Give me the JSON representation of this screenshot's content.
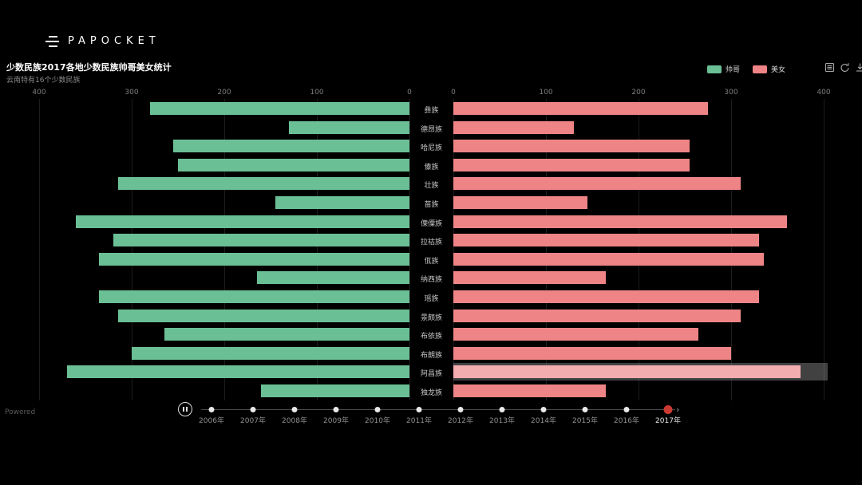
{
  "brand": {
    "logo_text": "PAPOCKET"
  },
  "header": {
    "title": "少数民族2017各地少数民族帅哥美女统计",
    "subtitle": "云南特有16个少数民族"
  },
  "legend": {
    "items": [
      {
        "label": "帅哥",
        "color": "#6abf94"
      },
      {
        "label": "美女",
        "color": "#ee8486"
      }
    ]
  },
  "toolbox": {
    "icons": [
      "data-view-icon",
      "restore-icon",
      "download-icon"
    ]
  },
  "timeline": {
    "years": [
      "2006年",
      "2007年",
      "2008年",
      "2009年",
      "2010年",
      "2011年",
      "2012年",
      "2013年",
      "2014年",
      "2015年",
      "2016年",
      "2017年"
    ],
    "current_year": "2017年",
    "control_state": "pause",
    "next_arrow": "›"
  },
  "footer": {
    "powered_text": "Powered"
  },
  "chart_data": {
    "type": "bar",
    "subtype": "bidirectional-horizontal",
    "title": "少数民族2017各地少数民族帅哥美女统计",
    "subtitle": "云南特有16个少数民族",
    "categories": [
      "彝族",
      "德昂族",
      "哈尼族",
      "傣族",
      "壮族",
      "苗族",
      "傈僳族",
      "拉祜族",
      "佤族",
      "纳西族",
      "瑶族",
      "景颇族",
      "布依族",
      "布朗族",
      "阿昌族",
      "独龙族"
    ],
    "series": [
      {
        "name": "帅哥",
        "side": "left",
        "color": "#6abf94",
        "values": [
          280,
          130,
          255,
          250,
          315,
          145,
          360,
          320,
          335,
          165,
          335,
          315,
          265,
          300,
          370,
          160
        ]
      },
      {
        "name": "美女",
        "side": "right",
        "color": "#ee8486",
        "values": [
          275,
          130,
          255,
          255,
          310,
          145,
          360,
          330,
          335,
          165,
          330,
          310,
          265,
          300,
          375,
          165
        ]
      }
    ],
    "left_axis_ticks": [
      400,
      300,
      200,
      100,
      0
    ],
    "right_axis_ticks": [
      0,
      100,
      200,
      300,
      400
    ],
    "xlim": [
      0,
      400
    ],
    "grid": true,
    "legend_position": "top-right",
    "highlight": {
      "category": "阿昌族",
      "series": "美女",
      "bar_color": "#f3adae",
      "band_color": "rgba(145,145,145,0.45)"
    }
  }
}
